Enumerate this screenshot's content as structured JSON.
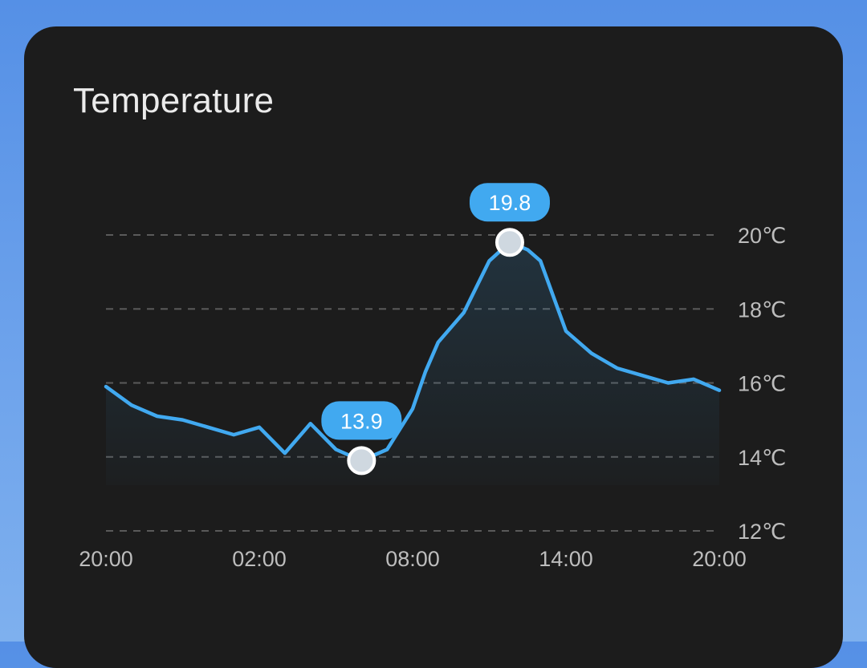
{
  "card": {
    "title": "Temperature"
  },
  "colors": {
    "accent": "#41a9f0",
    "background": "#1c1c1c",
    "grid": "#5a5a5a",
    "text": "#bdbdbd"
  },
  "chart_data": {
    "type": "area",
    "title": "Temperature",
    "unit": "℃",
    "ylim": [
      12,
      20
    ],
    "y_ticks": [
      {
        "value": 20,
        "label": "20℃"
      },
      {
        "value": 18,
        "label": "18℃"
      },
      {
        "value": 16,
        "label": "16℃"
      },
      {
        "value": 14,
        "label": "14℃"
      },
      {
        "value": 12,
        "label": "12℃"
      }
    ],
    "x_ticks": [
      {
        "hour": 0,
        "label": "20:00"
      },
      {
        "hour": 6,
        "label": "02:00"
      },
      {
        "hour": 12,
        "label": "08:00"
      },
      {
        "hour": 18,
        "label": "14:00"
      },
      {
        "hour": 24,
        "label": "20:00"
      }
    ],
    "grid": true,
    "series": [
      {
        "x": [
          0,
          1,
          2,
          3,
          4,
          5,
          6,
          7,
          8,
          9,
          10,
          11,
          12,
          12.5,
          13,
          14,
          15,
          15.8,
          16.5,
          17,
          18,
          19,
          20,
          21,
          22,
          23,
          24
        ],
        "y": [
          15.9,
          15.4,
          15.1,
          15.0,
          14.8,
          14.6,
          14.8,
          14.1,
          14.9,
          14.2,
          13.9,
          14.2,
          15.3,
          16.3,
          17.1,
          17.9,
          19.3,
          19.8,
          19.6,
          19.3,
          17.4,
          16.8,
          16.4,
          16.2,
          16.0,
          16.1,
          15.8
        ]
      }
    ],
    "annotations": [
      {
        "label": "13.9",
        "x": 10,
        "y": 13.9,
        "kind": "min"
      },
      {
        "label": "19.8",
        "x": 15.8,
        "y": 19.8,
        "kind": "max"
      }
    ]
  }
}
